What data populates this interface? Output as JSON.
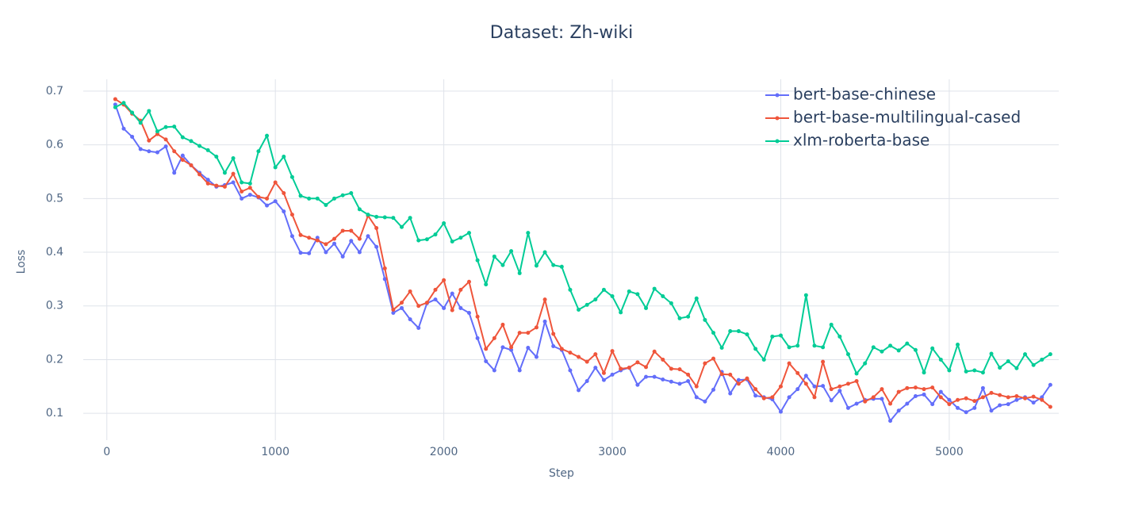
{
  "chart_data": {
    "type": "line",
    "title": "Dataset: Zh-wiki",
    "x_label": "Step",
    "y_label": "Loss",
    "x": [
      50,
      100,
      150,
      200,
      250,
      300,
      350,
      400,
      450,
      500,
      550,
      600,
      650,
      700,
      750,
      800,
      850,
      900,
      950,
      1000,
      1050,
      1100,
      1150,
      1200,
      1250,
      1300,
      1350,
      1400,
      1450,
      1500,
      1550,
      1600,
      1650,
      1700,
      1750,
      1800,
      1850,
      1900,
      1950,
      2000,
      2050,
      2100,
      2150,
      2200,
      2250,
      2300,
      2350,
      2400,
      2450,
      2500,
      2550,
      2600,
      2650,
      2700,
      2750,
      2800,
      2850,
      2900,
      2950,
      3000,
      3050,
      3100,
      3150,
      3200,
      3250,
      3300,
      3350,
      3400,
      3450,
      3500,
      3550,
      3600,
      3650,
      3700,
      3750,
      3800,
      3850,
      3900,
      3950,
      4000,
      4050,
      4100,
      4150,
      4200,
      4250,
      4300,
      4350,
      4400,
      4450,
      4500,
      4550,
      4600,
      4650,
      4700,
      4750,
      4800,
      4850,
      4900,
      4950,
      5000,
      5050,
      5100,
      5150,
      5200,
      5250,
      5300,
      5350,
      5400,
      5450,
      5500,
      5550,
      5600
    ],
    "series": [
      {
        "name": "bert-base-chinese",
        "color": "#636efa",
        "values": [
          0.675,
          0.63,
          0.615,
          0.592,
          0.588,
          0.586,
          0.597,
          0.548,
          0.58,
          0.562,
          0.548,
          0.535,
          0.522,
          0.525,
          0.53,
          0.5,
          0.507,
          0.502,
          0.487,
          0.495,
          0.476,
          0.43,
          0.399,
          0.398,
          0.427,
          0.4,
          0.416,
          0.392,
          0.421,
          0.4,
          0.43,
          0.41,
          0.35,
          0.287,
          0.296,
          0.275,
          0.259,
          0.305,
          0.312,
          0.296,
          0.323,
          0.296,
          0.287,
          0.24,
          0.197,
          0.18,
          0.223,
          0.218,
          0.18,
          0.222,
          0.205,
          0.271,
          0.225,
          0.218,
          0.18,
          0.143,
          0.16,
          0.185,
          0.162,
          0.172,
          0.18,
          0.185,
          0.153,
          0.168,
          0.168,
          0.163,
          0.159,
          0.155,
          0.16,
          0.13,
          0.122,
          0.144,
          0.177,
          0.137,
          0.162,
          0.163,
          0.133,
          0.13,
          0.126,
          0.103,
          0.13,
          0.145,
          0.17,
          0.15,
          0.151,
          0.124,
          0.142,
          0.11,
          0.118,
          0.125,
          0.127,
          0.127,
          0.086,
          0.105,
          0.118,
          0.132,
          0.135,
          0.117,
          0.14,
          0.125,
          0.11,
          0.102,
          0.11,
          0.147,
          0.105,
          0.115,
          0.117,
          0.125,
          0.13,
          0.12,
          0.13,
          0.153
        ]
      },
      {
        "name": "bert-base-multilingual-cased",
        "color": "#ef553b",
        "values": [
          0.685,
          0.675,
          0.658,
          0.645,
          0.608,
          0.62,
          0.61,
          0.588,
          0.572,
          0.562,
          0.545,
          0.528,
          0.524,
          0.522,
          0.546,
          0.513,
          0.52,
          0.503,
          0.5,
          0.53,
          0.51,
          0.47,
          0.432,
          0.427,
          0.422,
          0.415,
          0.425,
          0.44,
          0.44,
          0.425,
          0.468,
          0.445,
          0.37,
          0.293,
          0.306,
          0.327,
          0.3,
          0.306,
          0.33,
          0.348,
          0.292,
          0.33,
          0.345,
          0.28,
          0.22,
          0.24,
          0.265,
          0.223,
          0.25,
          0.25,
          0.26,
          0.312,
          0.248,
          0.22,
          0.213,
          0.205,
          0.196,
          0.21,
          0.175,
          0.216,
          0.183,
          0.185,
          0.195,
          0.186,
          0.215,
          0.2,
          0.183,
          0.182,
          0.172,
          0.15,
          0.193,
          0.202,
          0.173,
          0.172,
          0.155,
          0.165,
          0.145,
          0.128,
          0.13,
          0.15,
          0.193,
          0.175,
          0.155,
          0.13,
          0.196,
          0.145,
          0.15,
          0.155,
          0.16,
          0.122,
          0.13,
          0.145,
          0.118,
          0.14,
          0.147,
          0.148,
          0.145,
          0.148,
          0.13,
          0.117,
          0.125,
          0.128,
          0.123,
          0.13,
          0.138,
          0.134,
          0.13,
          0.132,
          0.128,
          0.131,
          0.125,
          0.112
        ]
      },
      {
        "name": "xlm-roberta-base",
        "color": "#00cc96",
        "values": [
          0.67,
          0.678,
          0.66,
          0.641,
          0.663,
          0.625,
          0.633,
          0.634,
          0.614,
          0.607,
          0.598,
          0.59,
          0.578,
          0.548,
          0.575,
          0.53,
          0.528,
          0.588,
          0.617,
          0.558,
          0.578,
          0.54,
          0.505,
          0.5,
          0.5,
          0.488,
          0.5,
          0.506,
          0.51,
          0.48,
          0.47,
          0.466,
          0.465,
          0.464,
          0.447,
          0.464,
          0.422,
          0.424,
          0.433,
          0.454,
          0.42,
          0.427,
          0.436,
          0.385,
          0.34,
          0.392,
          0.376,
          0.402,
          0.361,
          0.436,
          0.375,
          0.4,
          0.376,
          0.373,
          0.33,
          0.293,
          0.302,
          0.312,
          0.33,
          0.318,
          0.288,
          0.327,
          0.322,
          0.296,
          0.332,
          0.318,
          0.305,
          0.277,
          0.28,
          0.314,
          0.274,
          0.25,
          0.222,
          0.253,
          0.253,
          0.247,
          0.22,
          0.2,
          0.243,
          0.245,
          0.223,
          0.226,
          0.32,
          0.226,
          0.223,
          0.265,
          0.243,
          0.21,
          0.174,
          0.193,
          0.223,
          0.215,
          0.226,
          0.217,
          0.23,
          0.218,
          0.176,
          0.221,
          0.2,
          0.18,
          0.228,
          0.178,
          0.18,
          0.176,
          0.211,
          0.185,
          0.197,
          0.184,
          0.21,
          0.19,
          0.2,
          0.21
        ]
      }
    ],
    "xlim": [
      -140,
      5650
    ],
    "ylim": [
      0.05,
      0.722
    ],
    "xticks": [
      0,
      1000,
      2000,
      3000,
      4000,
      5000
    ],
    "yticks": [
      0.1,
      0.2,
      0.3,
      0.4,
      0.5,
      0.6,
      0.7
    ],
    "grid": true,
    "legend": "top-right"
  }
}
